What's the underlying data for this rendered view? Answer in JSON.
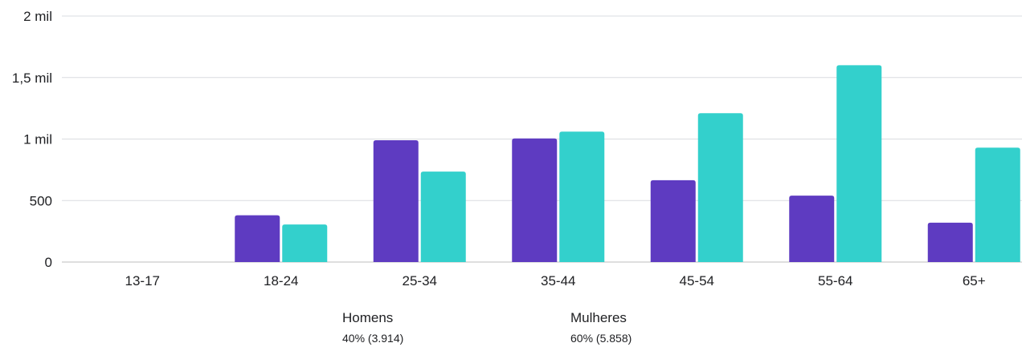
{
  "chart_data": {
    "type": "bar",
    "categories": [
      "13-17",
      "18-24",
      "25-34",
      "35-44",
      "45-54",
      "55-64",
      "65+"
    ],
    "series": [
      {
        "name": "Homens",
        "values": [
          0,
          380,
          990,
          1005,
          665,
          540,
          320
        ],
        "color": "#5e3bc1"
      },
      {
        "name": "Mulheres",
        "values": [
          0,
          305,
          735,
          1060,
          1210,
          1600,
          930
        ],
        "color": "#33d0cc"
      }
    ],
    "yticks": [
      {
        "value": 0,
        "label": "0"
      },
      {
        "value": 500,
        "label": "500"
      },
      {
        "value": 1000,
        "label": "1 mil"
      },
      {
        "value": 1500,
        "label": "1,5 mil"
      },
      {
        "value": 2000,
        "label": "2 mil"
      }
    ],
    "ylim": [
      0,
      2000
    ],
    "grid": true,
    "legend": {
      "placement": "bottom",
      "items": [
        {
          "name": "Homens",
          "detail": "40% (3.914)"
        },
        {
          "name": "Mulheres",
          "detail": "60% (5.858)"
        }
      ]
    },
    "title": "",
    "xlabel": "",
    "ylabel": ""
  }
}
